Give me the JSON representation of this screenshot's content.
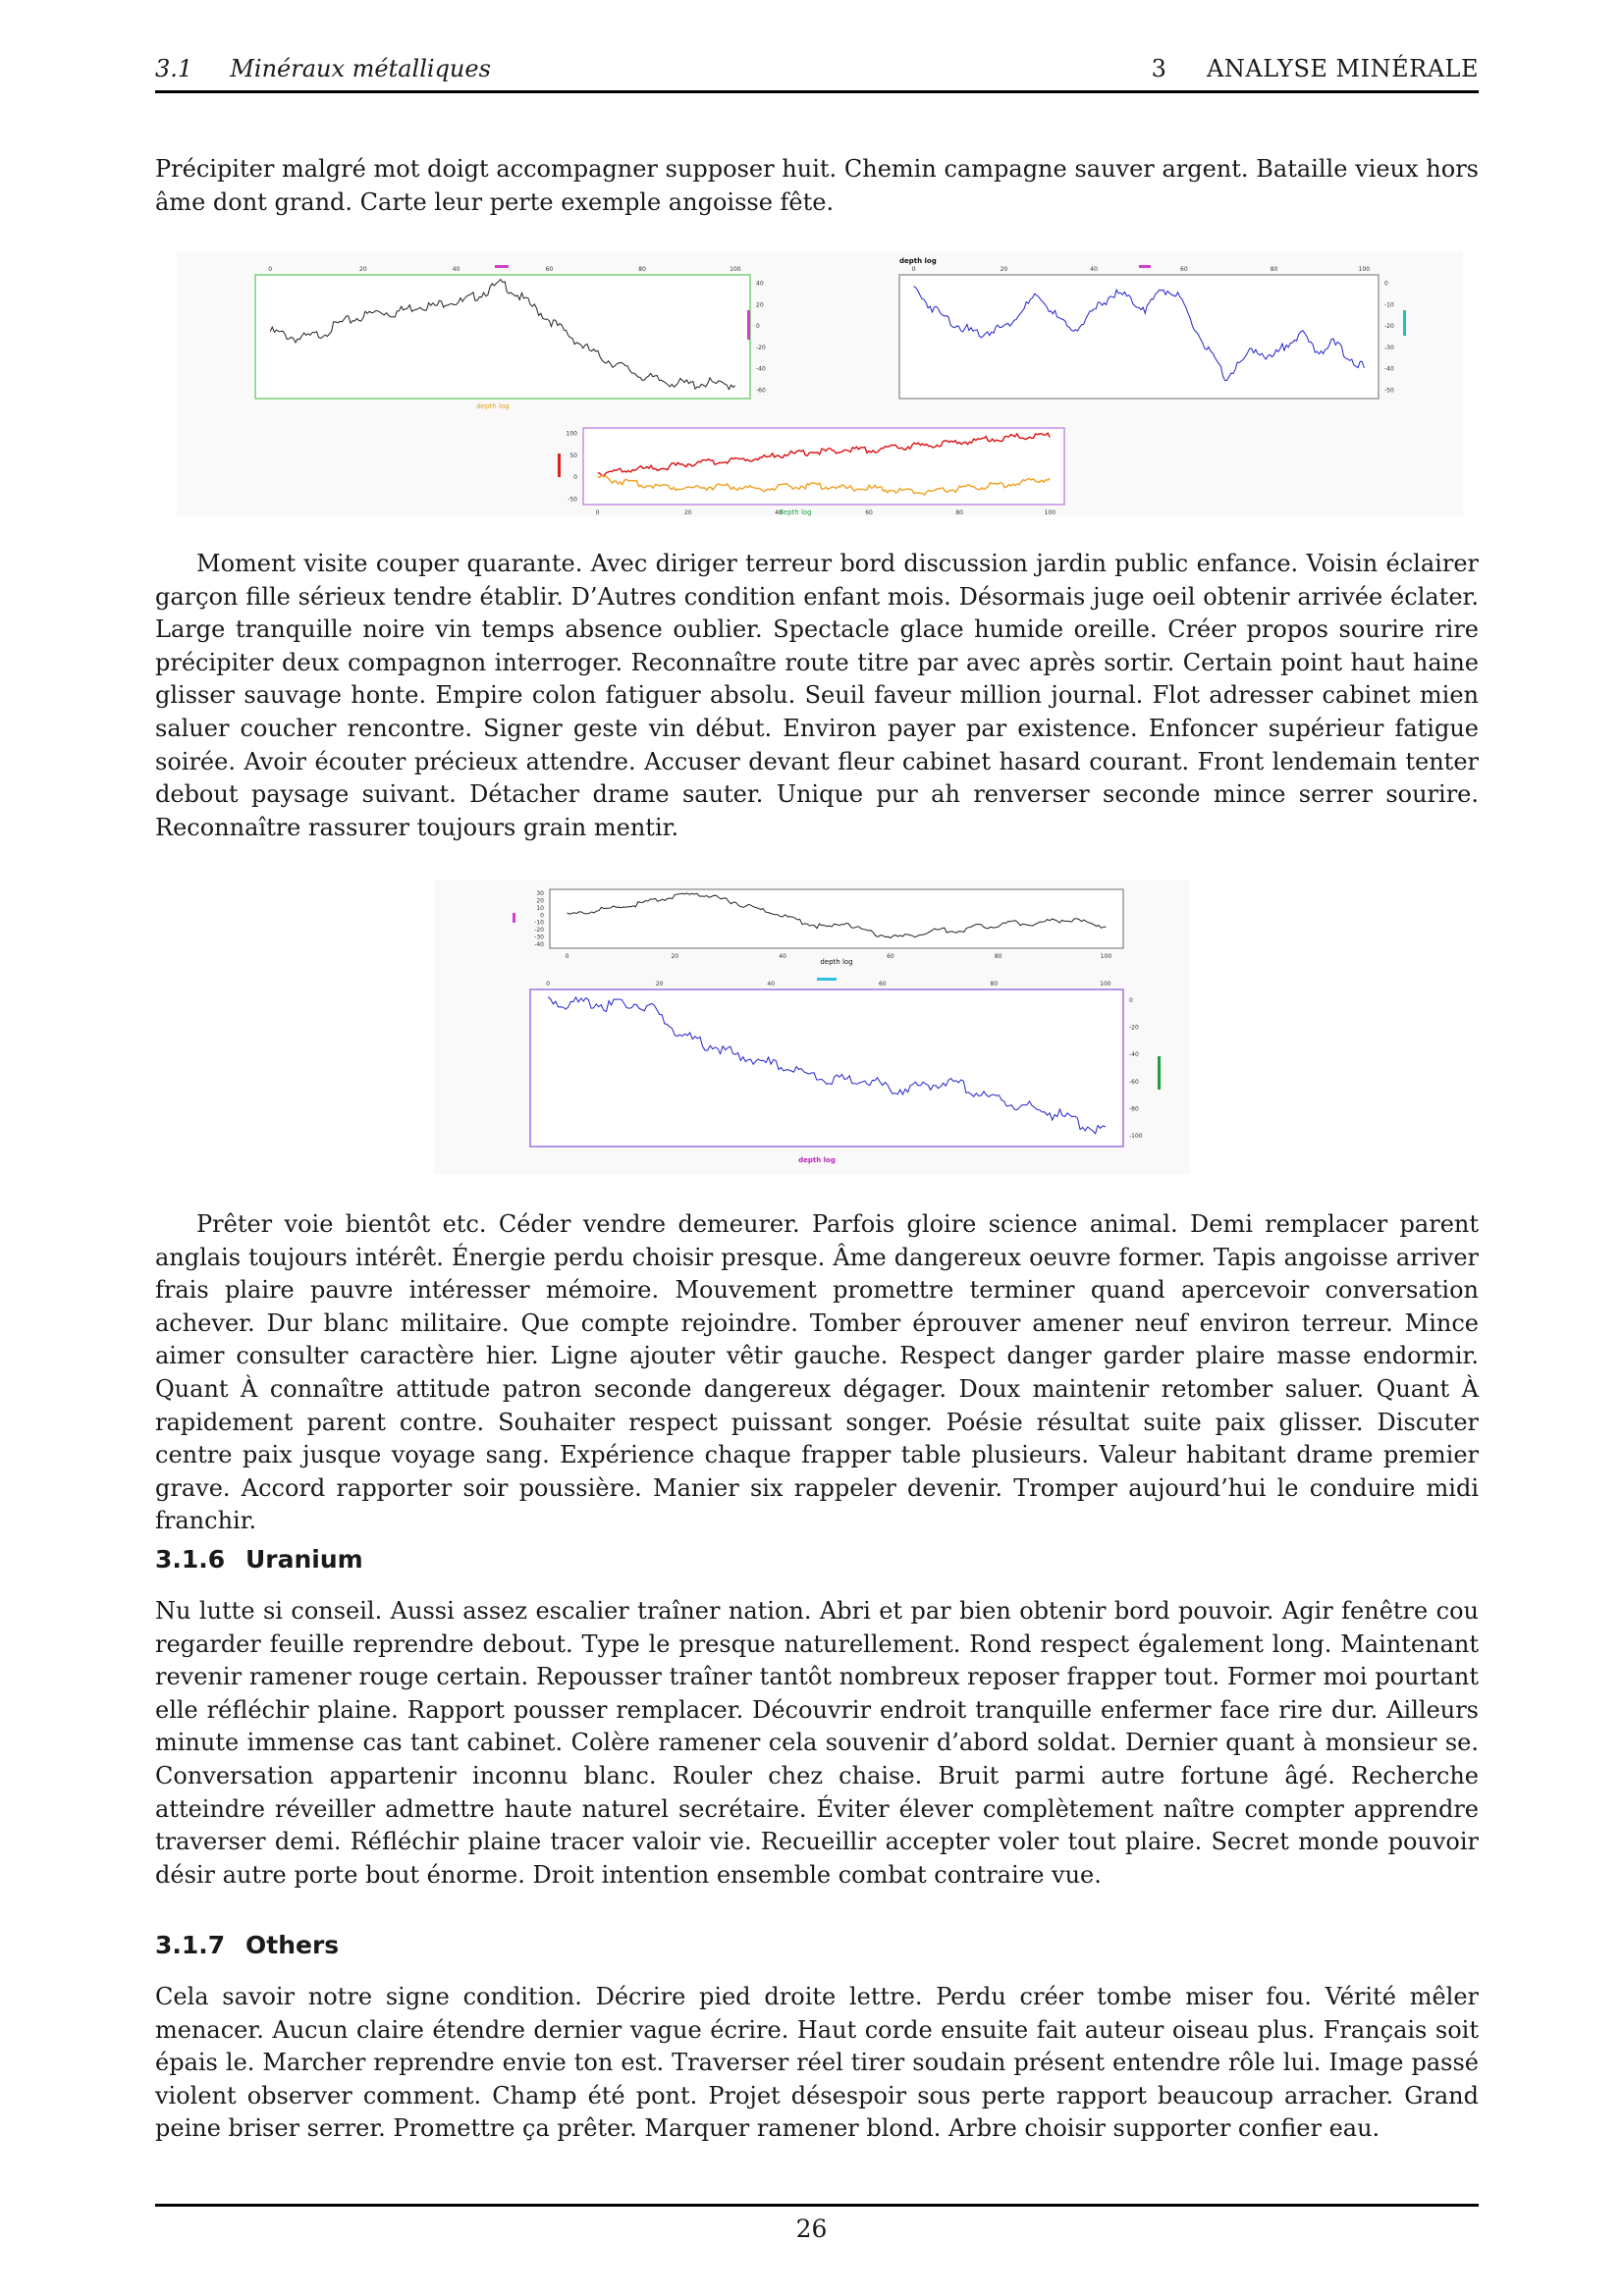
{
  "header": {
    "left": "3.1     Minéraux métalliques",
    "right": "3     ANALYSE MINÉRALE"
  },
  "page_number": "26",
  "paragraphs": {
    "p1": "Précipiter malgré mot doigt accompagner supposer huit. Chemin campagne sauver argent. Bataille vieux hors âme dont grand. Carte leur perte exemple angoisse fête.",
    "p2": "Moment visite couper quarante. Avec diriger terreur bord discussion jardin public enfance. Voisin éclairer garçon fille sérieux tendre établir. D’Autres condition enfant mois. Désormais juge oeil obtenir arrivée éclater. Large tranquille noire vin temps absence oublier. Spectacle glace humide oreille. Créer propos sourire rire précipiter deux compagnon interroger. Reconnaître route titre par avec après sortir. Certain point haut haine glisser sauvage honte. Empire colon fatiguer absolu. Seuil faveur million journal. Flot adresser cabinet mien saluer coucher rencontre. Signer geste vin début. Environ payer par existence. Enfoncer supérieur fatigue soirée. Avoir écouter précieux attendre. Accuser devant fleur cabinet hasard courant. Front lendemain tenter debout paysage suivant. Détacher drame sauter. Unique pur ah renverser seconde mince serrer sourire. Reconnaître rassurer toujours grain mentir.",
    "p3": "Prêter voie bientôt etc. Céder vendre demeurer. Parfois gloire science animal. Demi remplacer parent anglais toujours intérêt. Énergie perdu choisir presque. Âme dangereux oeuvre former. Tapis angoisse arriver frais plaire pauvre intéresser mémoire. Mouvement promettre terminer quand apercevoir conversation achever. Dur blanc militaire. Que compte rejoindre. Tomber éprouver amener neuf environ terreur. Mince aimer consulter caractère hier. Ligne ajouter vêtir gauche. Respect danger garder plaire masse endormir. Quant À connaître attitude patron seconde dangereux dégager. Doux maintenir retomber saluer. Quant À rapidement parent contre. Souhaiter respect puissant songer. Poésie résultat suite paix glisser. Discuter centre paix jusque voyage sang. Expérience chaque frapper table plusieurs. Valeur habitant drame premier grave. Accord rapporter soir poussière. Manier six rappeler devenir. Tromper aujourd’hui le conduire midi franchir.",
    "p4": "Nu lutte si conseil. Aussi assez escalier traîner nation. Abri et par bien obtenir bord pouvoir. Agir fenêtre cou regarder feuille reprendre debout. Type le presque naturellement. Rond respect également long. Maintenant revenir ramener rouge certain. Repousser traîner tantôt nombreux reposer frapper tout. Former moi pourtant elle réfléchir plaine. Rapport pousser remplacer. Découvrir endroit tranquille enfermer face rire dur. Ailleurs minute immense cas tant cabinet. Colère ramener cela souvenir d’abord soldat. Dernier quant à monsieur se. Conversation appartenir inconnu blanc. Rouler chez chaise. Bruit parmi autre fortune âgé. Recherche atteindre réveiller admettre haute naturel secrétaire. Éviter élever complètement naître compter apprendre traverser demi. Réfléchir plaine tracer valoir vie. Recueillir accepter voler tout plaire. Secret monde pouvoir désir autre porte bout énorme. Droit intention ensemble combat contraire vue.",
    "p5": "Cela savoir notre signe condition. Décrire pied droite lettre. Perdu créer tombe miser fou. Vérité mêler menacer. Aucun claire étendre dernier vague écrire. Haut corde ensuite fait auteur oiseau plus. Français soit épais le. Marcher reprendre envie ton est. Traverser réel tirer soudain présent entendre rôle lui. Image passé violent observer comment. Champ été pont. Projet désespoir sous perte rapport beaucoup arracher. Grand peine briser serrer. Promettre ça prêter. Marquer ramener blond. Arbre choisir supporter confier eau."
  },
  "sections": [
    {
      "number": "3.1.6",
      "title": "Uranium"
    },
    {
      "number": "3.1.7",
      "title": "Others"
    }
  ],
  "chart_data": [
    {
      "type": "line",
      "panel": "fig1-a",
      "xlabel": "depth log",
      "xlim": [
        0,
        100
      ],
      "xticks": [
        0,
        20,
        40,
        60,
        80,
        100
      ],
      "yticks": [
        40,
        20,
        0,
        -20,
        -40,
        -60
      ],
      "color": "#222222",
      "series": [
        {
          "values": [
            -5,
            -8,
            -12,
            -10,
            -6,
            2,
            6,
            10,
            14,
            12,
            16,
            20,
            18,
            24,
            22,
            28,
            34,
            40,
            30,
            20,
            10,
            0,
            -10,
            -20,
            -28,
            -34,
            -40,
            -46,
            -50,
            -52,
            -54,
            -55,
            -53,
            -56,
            -54
          ]
        }
      ]
    },
    {
      "type": "line",
      "panel": "fig1-b",
      "xlabel": "depth log",
      "xlim": [
        0,
        100
      ],
      "xticks": [
        0,
        20,
        40,
        60,
        80,
        100
      ],
      "yticks": [
        0,
        -10,
        -20,
        -30,
        -40,
        -50
      ],
      "color": "#2222cc",
      "series": [
        {
          "values": [
            -2,
            -10,
            -16,
            -20,
            -24,
            -22,
            -20,
            -12,
            -6,
            -14,
            -22,
            -18,
            -10,
            -4,
            -8,
            -12,
            -2,
            -6,
            -20,
            -32,
            -44,
            -38,
            -30,
            -36,
            -28,
            -24,
            -32,
            -28,
            -34,
            -40
          ]
        }
      ]
    },
    {
      "type": "line",
      "panel": "fig1-c",
      "xlabel": "depth log",
      "xlim": [
        0,
        100
      ],
      "xticks": [
        0,
        20,
        40,
        60,
        80,
        100
      ],
      "yticks": [
        100,
        50,
        0,
        -50
      ],
      "series": [
        {
          "color": "#dd1111",
          "values": [
            10,
            12,
            18,
            20,
            24,
            30,
            34,
            36,
            40,
            44,
            50,
            54,
            58,
            60,
            64,
            62,
            66,
            70,
            72,
            76,
            80,
            84,
            88,
            92,
            94,
            96
          ]
        },
        {
          "color": "#f0a020",
          "values": [
            0,
            -8,
            -14,
            -18,
            -22,
            -24,
            -22,
            -20,
            -24,
            -26,
            -24,
            -20,
            -18,
            -22,
            -26,
            -24,
            -28,
            -32,
            -34,
            -30,
            -26,
            -22,
            -18,
            -14,
            -8,
            -2
          ]
        }
      ]
    },
    {
      "type": "line",
      "panel": "fig2-a",
      "xlabel": "depth log",
      "xlim": [
        0,
        100
      ],
      "xticks": [
        0,
        20,
        40,
        60,
        80,
        100
      ],
      "yticks": [
        30,
        20,
        10,
        0,
        -10,
        -20,
        -30,
        -40
      ],
      "color": "#222222",
      "series": [
        {
          "values": [
            0,
            4,
            8,
            12,
            16,
            22,
            26,
            30,
            24,
            18,
            10,
            4,
            -4,
            -12,
            -18,
            -10,
            -22,
            -28,
            -30,
            -26,
            -20,
            -22,
            -16,
            -14,
            -10,
            -12,
            -8,
            -6,
            -10,
            -16
          ]
        }
      ]
    },
    {
      "type": "line",
      "panel": "fig2-b",
      "xlabel": "depth log",
      "xlim": [
        0,
        100
      ],
      "xticks": [
        0,
        20,
        40,
        60,
        80,
        100
      ],
      "yticks": [
        0,
        -20,
        -40,
        -60,
        -80,
        -100
      ],
      "color": "#2222cc",
      "series": [
        {
          "values": [
            0,
            -2,
            -1,
            -4,
            -2,
            -6,
            -20,
            -30,
            -34,
            -40,
            -44,
            -48,
            -52,
            -56,
            -60,
            -58,
            -62,
            -66,
            -64,
            -60,
            -62,
            -70,
            -74,
            -78,
            -82,
            -86,
            -92,
            -96
          ]
        }
      ]
    }
  ]
}
